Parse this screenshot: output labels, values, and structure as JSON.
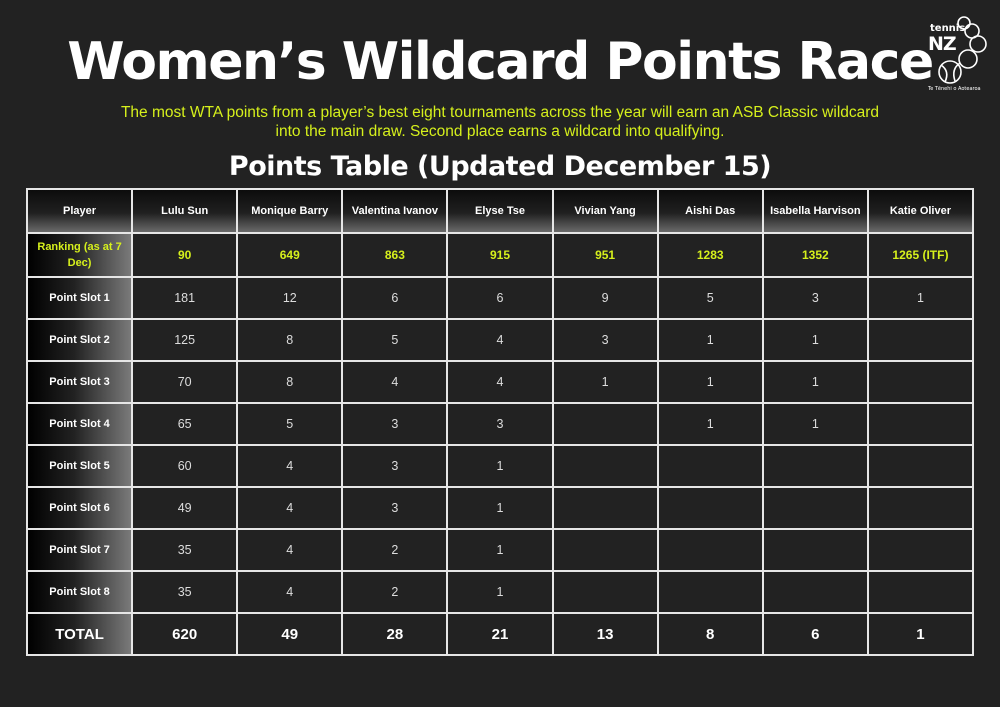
{
  "title": "Women’s Wildcard Points Race",
  "subtitle": "The most WTA points from a player’s best eight tournaments across the year will earn an ASB Classic wildcard into the main draw. Second place earns a wildcard into qualifying.",
  "table_title": "Points Table (Updated December 15)",
  "logo": {
    "line1": "tennis",
    "line2": "NZ",
    "tagline": "Te Tēnehi o Aotearoa"
  },
  "colors": {
    "background": "#222222",
    "accent": "#d6f01c",
    "grid": "#e6e6e6"
  },
  "table": {
    "corner": "Player",
    "players": [
      "Lulu Sun",
      "Monique Barry",
      "Valentina Ivanov",
      "Elyse Tse",
      "Vivian Yang",
      "Aishi Das",
      "Isabella Harvison",
      "Katie Oliver"
    ],
    "ranking_label": "Ranking (as at 7 Dec)",
    "rankings": [
      "90",
      "649",
      "863",
      "915",
      "951",
      "1283",
      "1352",
      "1265 (ITF)"
    ],
    "slots": [
      {
        "label": "Point Slot 1",
        "values": [
          "181",
          "12",
          "6",
          "6",
          "9",
          "5",
          "3",
          "1"
        ]
      },
      {
        "label": "Point Slot 2",
        "values": [
          "125",
          "8",
          "5",
          "4",
          "3",
          "1",
          "1",
          ""
        ]
      },
      {
        "label": "Point Slot 3",
        "values": [
          "70",
          "8",
          "4",
          "4",
          "1",
          "1",
          "1",
          ""
        ]
      },
      {
        "label": "Point Slot 4",
        "values": [
          "65",
          "5",
          "3",
          "3",
          "",
          "1",
          "1",
          ""
        ]
      },
      {
        "label": "Point Slot 5",
        "values": [
          "60",
          "4",
          "3",
          "1",
          "",
          "",
          "",
          ""
        ]
      },
      {
        "label": "Point Slot 6",
        "values": [
          "49",
          "4",
          "3",
          "1",
          "",
          "",
          "",
          ""
        ]
      },
      {
        "label": "Point Slot 7",
        "values": [
          "35",
          "4",
          "2",
          "1",
          "",
          "",
          "",
          ""
        ]
      },
      {
        "label": "Point Slot 8",
        "values": [
          "35",
          "4",
          "2",
          "1",
          "",
          "",
          "",
          ""
        ]
      }
    ],
    "total_label": "TOTAL",
    "totals": [
      "620",
      "49",
      "28",
      "21",
      "13",
      "8",
      "6",
      "1"
    ]
  }
}
